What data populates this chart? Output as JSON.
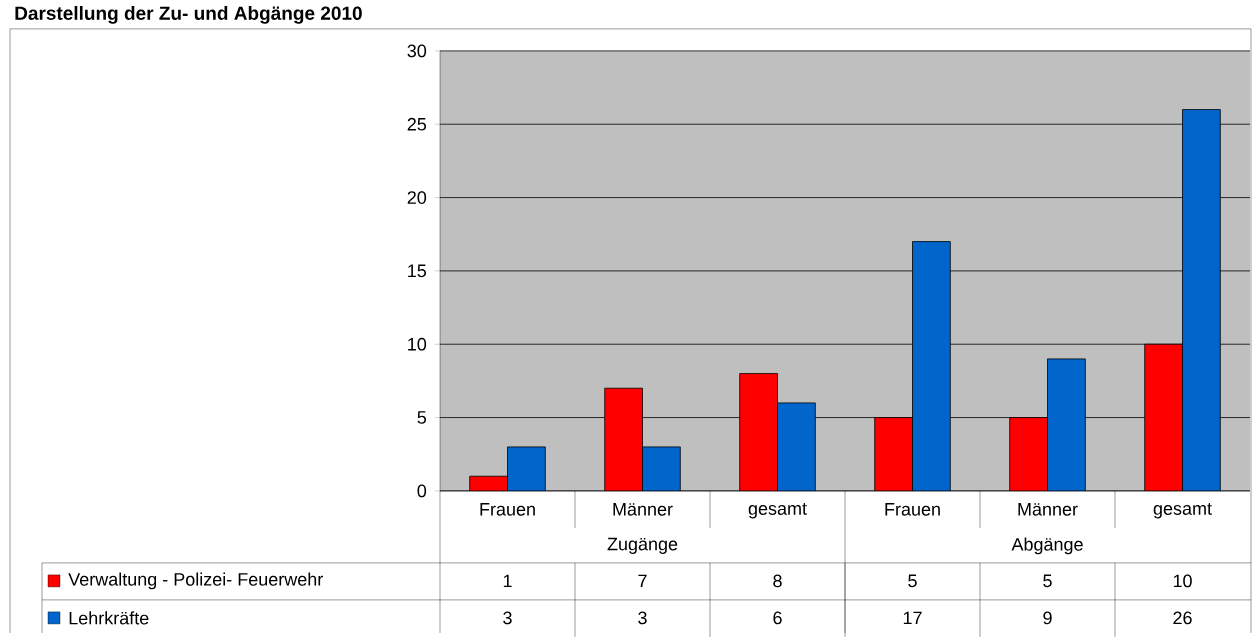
{
  "chart_data": {
    "type": "bar",
    "title": "Darstellung der Zu- und Abgänge 2010",
    "categories": [
      "Frauen",
      "Männer",
      "gesamt",
      "Frauen",
      "Männer",
      "gesamt"
    ],
    "annotations": [
      "Zugänge",
      "Abgänge"
    ],
    "series": [
      {
        "name": "Verwaltung - Polizei- Feuerwehr",
        "color": "#ff0000",
        "values": [
          1,
          7,
          8,
          5,
          5,
          10
        ]
      },
      {
        "name": "Lehrkräfte",
        "color": "#0066cc",
        "values": [
          3,
          3,
          6,
          17,
          9,
          26
        ]
      }
    ],
    "ylim": [
      0,
      30
    ],
    "yticks": [
      0,
      5,
      10,
      15,
      20,
      25,
      30
    ],
    "grid": "y",
    "data_labels": true,
    "legend": "bottom left"
  }
}
